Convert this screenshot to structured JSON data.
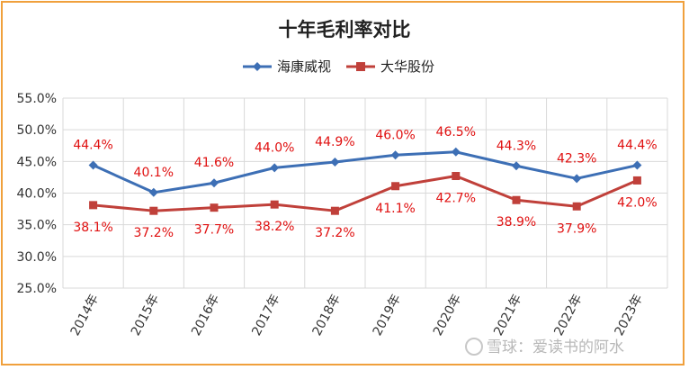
{
  "chart_data": {
    "type": "line",
    "title": "十年毛利率对比",
    "categories": [
      "2014年",
      "2015年",
      "2016年",
      "2017年",
      "2018年",
      "2019年",
      "2020年",
      "2021年",
      "2022年",
      "2023年"
    ],
    "series": [
      {
        "name": "海康威视",
        "color": "#3d6fb5",
        "marker": "diamond",
        "values": [
          44.4,
          40.1,
          41.6,
          44.0,
          44.9,
          46.0,
          46.5,
          44.3,
          42.3,
          44.4
        ],
        "labels": [
          "44.4%",
          "40.1%",
          "41.6%",
          "44.0%",
          "44.9%",
          "46.0%",
          "46.5%",
          "44.3%",
          "42.3%",
          "44.4%"
        ]
      },
      {
        "name": "大华股份",
        "color": "#c0403a",
        "marker": "square",
        "values": [
          38.1,
          37.2,
          37.7,
          38.2,
          37.2,
          41.1,
          42.7,
          38.9,
          37.9,
          42.0
        ],
        "labels": [
          "38.1%",
          "37.2%",
          "37.7%",
          "38.2%",
          "37.2%",
          "41.1%",
          "42.7%",
          "38.9%",
          "37.9%",
          "42.0%"
        ]
      }
    ],
    "ylim": [
      25,
      55
    ],
    "yticks": [
      "25.0%",
      "30.0%",
      "35.0%",
      "40.0%",
      "45.0%",
      "50.0%",
      "55.0%"
    ],
    "grid": true,
    "legend_position": "top",
    "label_color": "#e01010"
  },
  "watermark": "雪球：爱读书的阿水",
  "frame_color": "#f0a03c"
}
